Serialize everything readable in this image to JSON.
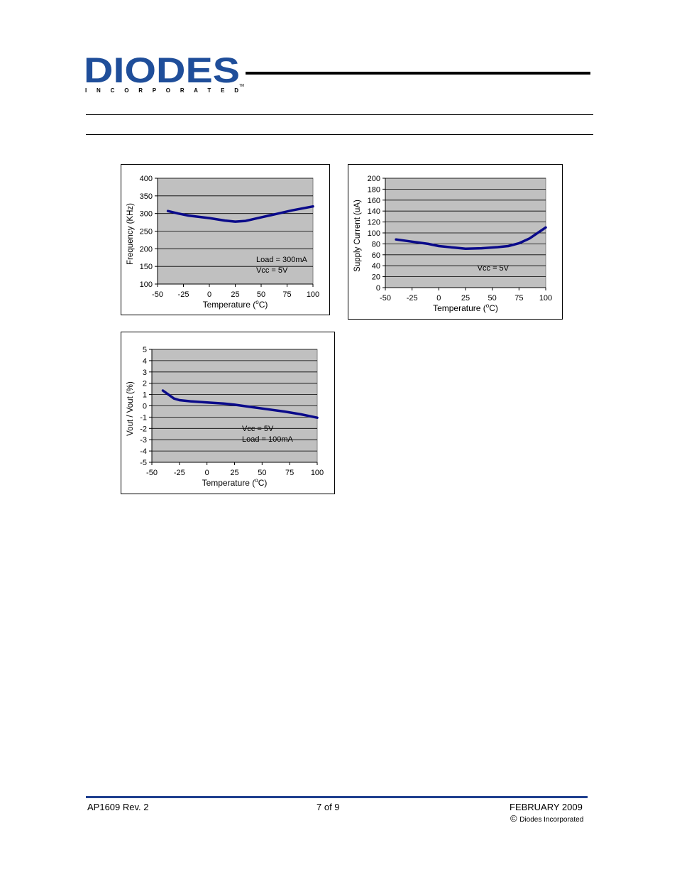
{
  "header": {
    "logo_text": "DIODES",
    "logo_sub": "I N C O R P O R A T E D",
    "logo_tm": "TM",
    "brand_color": "#1f4e9a"
  },
  "footer": {
    "left": "AP1609 Rev. 2",
    "center": "7 of 9",
    "right": "FEBRUARY 2009",
    "copyright_symbol": "©",
    "company": "Diodes Incorporated",
    "rule_color": "#1f3f8f"
  },
  "chart_data": [
    {
      "type": "line",
      "ylabel": "Frequency (KHz)",
      "xlabel": "Temperature (",
      "xlabel_sup": "o",
      "xlabel_end": "C)",
      "xlim": [
        -50,
        100
      ],
      "ylim": [
        100,
        400
      ],
      "xticks": [
        -50,
        -25,
        0,
        25,
        50,
        75,
        100
      ],
      "yticks": [
        100,
        150,
        200,
        250,
        300,
        350,
        400
      ],
      "grid": true,
      "line_color": "#0a0a8a",
      "plot_bg": "#c0c0c0",
      "annotations": [
        "Load = 300mA",
        "Vcc = 5V"
      ],
      "annotation_placement": "bottom-right",
      "series": [
        {
          "x": [
            -40,
            -30,
            -20,
            0,
            15,
            25,
            35,
            50,
            65,
            80,
            100
          ],
          "y": [
            307,
            300,
            294,
            287,
            280,
            277,
            279,
            289,
            299,
            309,
            320
          ]
        }
      ]
    },
    {
      "type": "line",
      "ylabel": "Supply Current (uA)",
      "xlabel": "Temperature (",
      "xlabel_sup": "o",
      "xlabel_end": "C)",
      "xlim": [
        -50,
        100
      ],
      "ylim": [
        0,
        200
      ],
      "xticks": [
        -50,
        -25,
        0,
        25,
        50,
        75,
        100
      ],
      "yticks": [
        0,
        20,
        40,
        60,
        80,
        100,
        120,
        140,
        160,
        180,
        200
      ],
      "grid": true,
      "line_color": "#0a0a8a",
      "plot_bg": "#c0c0c0",
      "annotations": [
        "Vcc = 5V"
      ],
      "annotation_placement": "bottom-right",
      "series": [
        {
          "x": [
            -40,
            -25,
            -10,
            0,
            15,
            25,
            40,
            55,
            65,
            75,
            85,
            100
          ],
          "y": [
            88,
            84,
            80,
            76,
            73,
            71,
            72,
            74,
            76,
            81,
            90,
            110
          ]
        }
      ]
    },
    {
      "type": "line",
      "ylabel": "Vout / Vout (%)",
      "xlabel": "Temperature (",
      "xlabel_sup": "o",
      "xlabel_end": "C)",
      "xlim": [
        -50,
        100
      ],
      "ylim": [
        -5,
        5
      ],
      "xticks": [
        -50,
        -25,
        0,
        25,
        50,
        75,
        100
      ],
      "yticks": [
        -5,
        -4,
        -3,
        -2,
        -1,
        0,
        1,
        2,
        3,
        4,
        5
      ],
      "grid": true,
      "line_color": "#0a0a8a",
      "plot_bg": "#c0c0c0",
      "annotations": [
        "Vcc = 5V",
        "Load = 100mA"
      ],
      "annotation_placement": "bottom-center",
      "series": [
        {
          "x": [
            -40,
            -35,
            -30,
            -25,
            -15,
            0,
            15,
            25,
            40,
            55,
            70,
            85,
            100
          ],
          "y": [
            1.35,
            1.0,
            0.65,
            0.5,
            0.4,
            0.3,
            0.2,
            0.1,
            -0.1,
            -0.3,
            -0.5,
            -0.75,
            -1.05
          ]
        }
      ]
    }
  ]
}
